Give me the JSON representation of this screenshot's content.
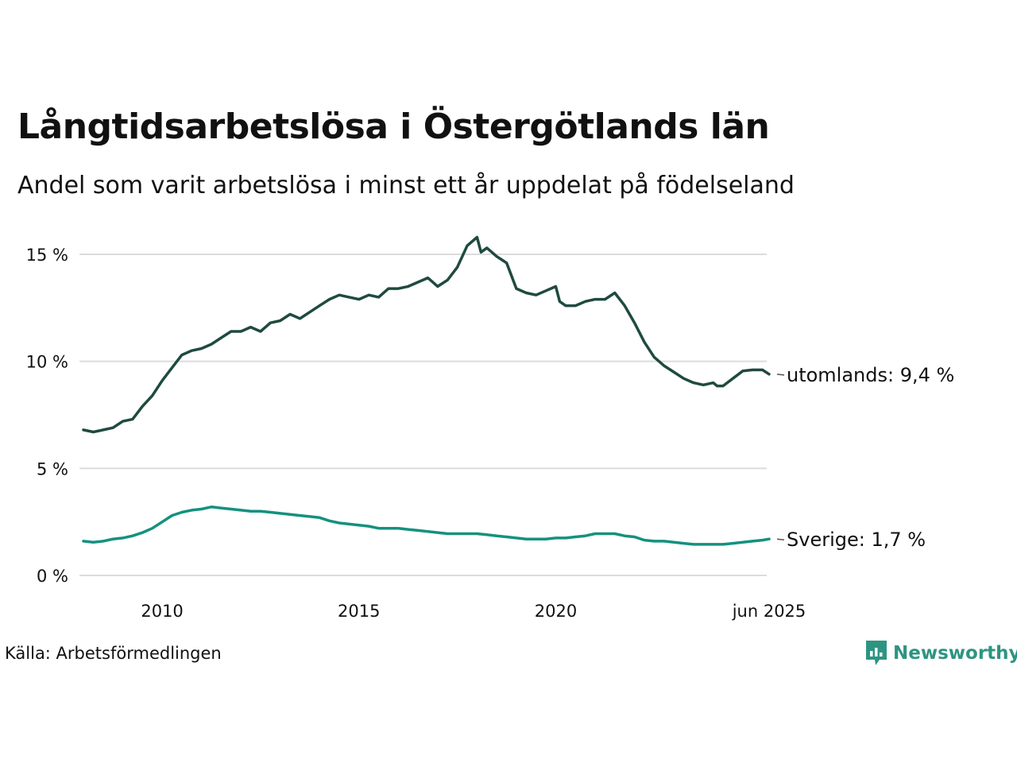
{
  "header": {
    "title": "Långtidsarbetslösa i Östergötlands län",
    "subtitle": "Andel som varit arbetslösa i minst ett år uppdelat på födelseland"
  },
  "footer": {
    "source": "Källa: Arbetsförmedlingen",
    "brand": "Newsworthy",
    "brand_color": "#2e9482"
  },
  "chart_data": {
    "type": "line",
    "title": "Långtidsarbetslösa i Östergötlands län",
    "subtitle": "Andel som varit arbetslösa i minst ett år uppdelat på födelseland",
    "xlabel": "",
    "ylabel": "",
    "ylim": [
      0,
      15
    ],
    "xlim": [
      2008.0,
      2025.42
    ],
    "yticks": [
      0,
      5,
      10,
      15
    ],
    "ytick_labels": [
      "0 %",
      "5 %",
      "10 %",
      "15 %"
    ],
    "xticks": [
      2010,
      2015,
      2020,
      2025.42
    ],
    "xtick_labels": [
      "2010",
      "2015",
      "2020",
      "jun 2025"
    ],
    "grid": "horizontal",
    "series": [
      {
        "name": "utomlands",
        "end_label": "utomlands: 9,4 %",
        "color": "#1f4a40",
        "points": [
          [
            2008.0,
            6.8
          ],
          [
            2008.25,
            6.7
          ],
          [
            2008.5,
            6.8
          ],
          [
            2008.75,
            6.9
          ],
          [
            2009.0,
            7.2
          ],
          [
            2009.25,
            7.3
          ],
          [
            2009.5,
            7.9
          ],
          [
            2009.75,
            8.4
          ],
          [
            2010.0,
            9.1
          ],
          [
            2010.25,
            9.7
          ],
          [
            2010.5,
            10.3
          ],
          [
            2010.75,
            10.5
          ],
          [
            2011.0,
            10.6
          ],
          [
            2011.25,
            10.8
          ],
          [
            2011.5,
            11.1
          ],
          [
            2011.75,
            11.4
          ],
          [
            2012.0,
            11.4
          ],
          [
            2012.25,
            11.6
          ],
          [
            2012.5,
            11.4
          ],
          [
            2012.75,
            11.8
          ],
          [
            2013.0,
            11.9
          ],
          [
            2013.25,
            12.2
          ],
          [
            2013.5,
            12.0
          ],
          [
            2013.75,
            12.3
          ],
          [
            2014.0,
            12.6
          ],
          [
            2014.25,
            12.9
          ],
          [
            2014.5,
            13.1
          ],
          [
            2014.75,
            13.0
          ],
          [
            2015.0,
            12.9
          ],
          [
            2015.25,
            13.1
          ],
          [
            2015.5,
            13.0
          ],
          [
            2015.75,
            13.4
          ],
          [
            2016.0,
            13.4
          ],
          [
            2016.25,
            13.5
          ],
          [
            2016.5,
            13.7
          ],
          [
            2016.75,
            13.9
          ],
          [
            2017.0,
            13.5
          ],
          [
            2017.25,
            13.8
          ],
          [
            2017.5,
            14.4
          ],
          [
            2017.75,
            15.4
          ],
          [
            2018.0,
            15.8
          ],
          [
            2018.1,
            15.1
          ],
          [
            2018.25,
            15.3
          ],
          [
            2018.5,
            14.9
          ],
          [
            2018.75,
            14.6
          ],
          [
            2019.0,
            13.4
          ],
          [
            2019.25,
            13.2
          ],
          [
            2019.5,
            13.1
          ],
          [
            2019.75,
            13.3
          ],
          [
            2020.0,
            13.5
          ],
          [
            2020.1,
            12.8
          ],
          [
            2020.25,
            12.6
          ],
          [
            2020.5,
            12.6
          ],
          [
            2020.75,
            12.8
          ],
          [
            2021.0,
            12.9
          ],
          [
            2021.25,
            12.9
          ],
          [
            2021.5,
            13.2
          ],
          [
            2021.75,
            12.6
          ],
          [
            2022.0,
            11.8
          ],
          [
            2022.25,
            10.9
          ],
          [
            2022.5,
            10.2
          ],
          [
            2022.75,
            9.8
          ],
          [
            2023.0,
            9.5
          ],
          [
            2023.25,
            9.2
          ],
          [
            2023.5,
            9.0
          ],
          [
            2023.75,
            8.9
          ],
          [
            2024.0,
            9.0
          ],
          [
            2024.1,
            8.85
          ],
          [
            2024.25,
            8.85
          ],
          [
            2024.5,
            9.2
          ],
          [
            2024.75,
            9.55
          ],
          [
            2025.0,
            9.6
          ],
          [
            2025.25,
            9.6
          ],
          [
            2025.42,
            9.4
          ]
        ]
      },
      {
        "name": "Sverige",
        "end_label": "Sverige: 1,7 %",
        "color": "#14917f",
        "points": [
          [
            2008.0,
            1.6
          ],
          [
            2008.25,
            1.55
          ],
          [
            2008.5,
            1.6
          ],
          [
            2008.75,
            1.7
          ],
          [
            2009.0,
            1.75
          ],
          [
            2009.25,
            1.85
          ],
          [
            2009.5,
            2.0
          ],
          [
            2009.75,
            2.2
          ],
          [
            2010.0,
            2.5
          ],
          [
            2010.25,
            2.8
          ],
          [
            2010.5,
            2.95
          ],
          [
            2010.75,
            3.05
          ],
          [
            2011.0,
            3.1
          ],
          [
            2011.25,
            3.2
          ],
          [
            2011.5,
            3.15
          ],
          [
            2011.75,
            3.1
          ],
          [
            2012.0,
            3.05
          ],
          [
            2012.25,
            3.0
          ],
          [
            2012.5,
            3.0
          ],
          [
            2012.75,
            2.95
          ],
          [
            2013.0,
            2.9
          ],
          [
            2013.25,
            2.85
          ],
          [
            2013.5,
            2.8
          ],
          [
            2013.75,
            2.75
          ],
          [
            2014.0,
            2.7
          ],
          [
            2014.25,
            2.55
          ],
          [
            2014.5,
            2.45
          ],
          [
            2014.75,
            2.4
          ],
          [
            2015.0,
            2.35
          ],
          [
            2015.25,
            2.3
          ],
          [
            2015.5,
            2.2
          ],
          [
            2015.75,
            2.2
          ],
          [
            2016.0,
            2.2
          ],
          [
            2016.25,
            2.15
          ],
          [
            2016.5,
            2.1
          ],
          [
            2016.75,
            2.05
          ],
          [
            2017.0,
            2.0
          ],
          [
            2017.25,
            1.95
          ],
          [
            2017.5,
            1.95
          ],
          [
            2017.75,
            1.95
          ],
          [
            2018.0,
            1.95
          ],
          [
            2018.25,
            1.9
          ],
          [
            2018.5,
            1.85
          ],
          [
            2018.75,
            1.8
          ],
          [
            2019.0,
            1.75
          ],
          [
            2019.25,
            1.7
          ],
          [
            2019.5,
            1.7
          ],
          [
            2019.75,
            1.7
          ],
          [
            2020.0,
            1.75
          ],
          [
            2020.25,
            1.75
          ],
          [
            2020.5,
            1.8
          ],
          [
            2020.75,
            1.85
          ],
          [
            2021.0,
            1.95
          ],
          [
            2021.25,
            1.95
          ],
          [
            2021.5,
            1.95
          ],
          [
            2021.75,
            1.85
          ],
          [
            2022.0,
            1.8
          ],
          [
            2022.25,
            1.65
          ],
          [
            2022.5,
            1.6
          ],
          [
            2022.75,
            1.6
          ],
          [
            2023.0,
            1.55
          ],
          [
            2023.25,
            1.5
          ],
          [
            2023.5,
            1.45
          ],
          [
            2023.75,
            1.45
          ],
          [
            2024.0,
            1.45
          ],
          [
            2024.25,
            1.45
          ],
          [
            2024.5,
            1.5
          ],
          [
            2024.75,
            1.55
          ],
          [
            2025.0,
            1.6
          ],
          [
            2025.25,
            1.65
          ],
          [
            2025.42,
            1.7
          ]
        ]
      }
    ]
  }
}
